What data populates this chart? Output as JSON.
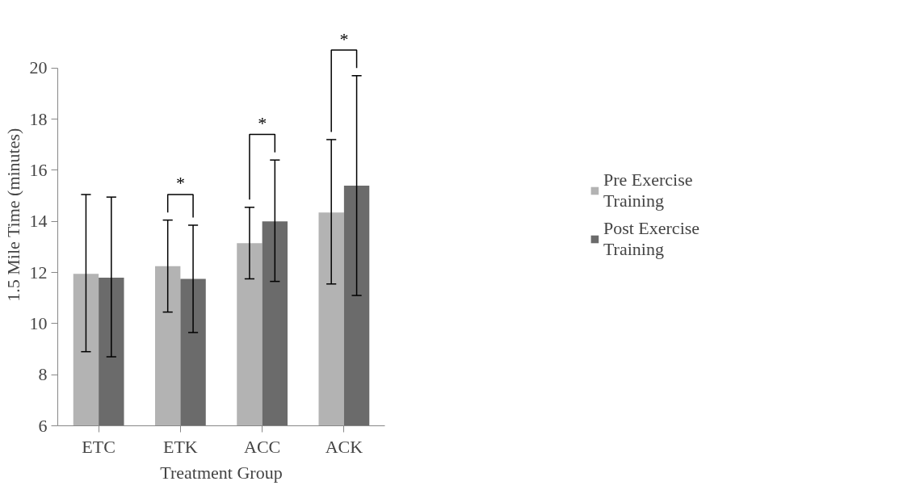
{
  "chart_data": {
    "type": "bar",
    "xlabel": "Treatment Group",
    "ylabel": "1.5 Mile Time (minutes)",
    "categories": [
      "ETC",
      "ETK",
      "ACC",
      "ACK"
    ],
    "series": [
      {
        "name": "Pre Exercise Training",
        "color": "#b3b3b3",
        "values": [
          11.95,
          12.25,
          13.15,
          14.35
        ],
        "errors": [
          [
            8.9,
            15.05
          ],
          [
            10.45,
            14.05
          ],
          [
            11.75,
            14.55
          ],
          [
            11.55,
            17.2
          ]
        ]
      },
      {
        "name": "Post Exercise Training",
        "color": "#6b6b6b",
        "values": [
          11.8,
          11.75,
          14.0,
          15.4
        ],
        "errors": [
          [
            8.7,
            14.95
          ],
          [
            9.65,
            13.85
          ],
          [
            11.65,
            16.4
          ],
          [
            11.1,
            19.7
          ]
        ]
      }
    ],
    "ylim": [
      6,
      20
    ],
    "yticks": [
      6,
      8,
      10,
      12,
      14,
      16,
      18,
      20
    ],
    "grid": false,
    "legend": "right",
    "annotations": [
      "*",
      "*",
      "*"
    ]
  }
}
